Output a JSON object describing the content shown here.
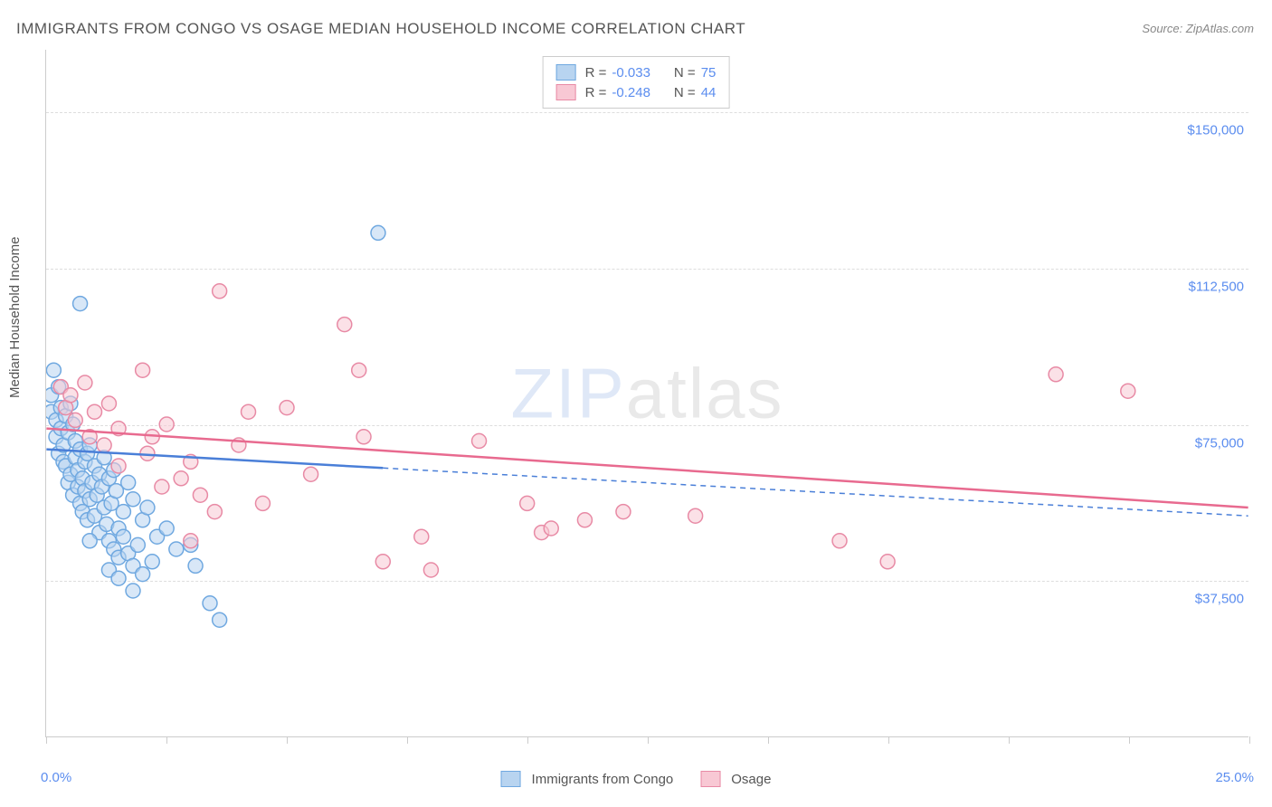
{
  "title": "IMMIGRANTS FROM CONGO VS OSAGE MEDIAN HOUSEHOLD INCOME CORRELATION CHART",
  "source_label": "Source:",
  "source_value": "ZipAtlas.com",
  "watermark_bold": "ZIP",
  "watermark_thin": "atlas",
  "y_axis_title": "Median Household Income",
  "chart": {
    "type": "scatter",
    "xlim": [
      0,
      25
    ],
    "ylim": [
      0,
      165000
    ],
    "x_tick_positions": [
      0,
      2.5,
      5,
      7.5,
      10,
      12.5,
      15,
      17.5,
      20,
      22.5,
      25
    ],
    "y_gridlines": [
      {
        "value": 37500,
        "label": "$37,500"
      },
      {
        "value": 75000,
        "label": "$75,000"
      },
      {
        "value": 112500,
        "label": "$112,500"
      },
      {
        "value": 150000,
        "label": "$150,000"
      }
    ],
    "x_label_min": "0.0%",
    "x_label_max": "25.0%",
    "background_color": "#ffffff",
    "grid_color": "#dddddd",
    "axis_color": "#cccccc",
    "marker_radius": 8,
    "marker_stroke_width": 1.5,
    "trend_line_width": 2.5,
    "series": [
      {
        "name": "Immigrants from Congo",
        "fill": "#b8d4f0",
        "stroke": "#6fa8e0",
        "line_color": "#4a7fd8",
        "r_label": "R =",
        "r_value": "-0.033",
        "n_label": "N =",
        "n_value": "75",
        "trend": {
          "x1": 0,
          "y1": 69000,
          "x2": 7.0,
          "y2": 64500,
          "dash_to_x": 25,
          "dash_to_y": 53000
        },
        "points": [
          [
            0.1,
            78000
          ],
          [
            0.1,
            82000
          ],
          [
            0.15,
            88000
          ],
          [
            0.2,
            76000
          ],
          [
            0.2,
            72000
          ],
          [
            0.25,
            84000
          ],
          [
            0.25,
            68000
          ],
          [
            0.3,
            79000
          ],
          [
            0.3,
            74000
          ],
          [
            0.35,
            70000
          ],
          [
            0.35,
            66000
          ],
          [
            0.4,
            77000
          ],
          [
            0.4,
            65000
          ],
          [
            0.45,
            73000
          ],
          [
            0.45,
            61000
          ],
          [
            0.5,
            80000
          ],
          [
            0.5,
            63000
          ],
          [
            0.55,
            58000
          ],
          [
            0.55,
            75000
          ],
          [
            0.6,
            67000
          ],
          [
            0.6,
            71000
          ],
          [
            0.65,
            60000
          ],
          [
            0.65,
            64000
          ],
          [
            0.7,
            69000
          ],
          [
            0.7,
            56000
          ],
          [
            0.75,
            62000
          ],
          [
            0.75,
            54000
          ],
          [
            0.8,
            66000
          ],
          [
            0.8,
            59000
          ],
          [
            0.85,
            68000
          ],
          [
            0.85,
            52000
          ],
          [
            0.9,
            57000
          ],
          [
            0.9,
            70000
          ],
          [
            0.95,
            61000
          ],
          [
            1.0,
            65000
          ],
          [
            1.0,
            53000
          ],
          [
            1.05,
            58000
          ],
          [
            1.1,
            63000
          ],
          [
            1.1,
            49000
          ],
          [
            1.15,
            60000
          ],
          [
            1.2,
            67000
          ],
          [
            1.2,
            55000
          ],
          [
            1.25,
            51000
          ],
          [
            1.3,
            62000
          ],
          [
            1.3,
            47000
          ],
          [
            1.35,
            56000
          ],
          [
            1.4,
            64000
          ],
          [
            1.4,
            45000
          ],
          [
            1.45,
            59000
          ],
          [
            1.5,
            50000
          ],
          [
            1.5,
            43000
          ],
          [
            1.6,
            48000
          ],
          [
            1.6,
            54000
          ],
          [
            1.7,
            61000
          ],
          [
            1.7,
            44000
          ],
          [
            1.8,
            57000
          ],
          [
            1.8,
            41000
          ],
          [
            1.9,
            46000
          ],
          [
            2.0,
            52000
          ],
          [
            2.0,
            39000
          ],
          [
            2.1,
            55000
          ],
          [
            2.2,
            42000
          ],
          [
            2.3,
            48000
          ],
          [
            0.7,
            104000
          ],
          [
            2.5,
            50000
          ],
          [
            2.7,
            45000
          ],
          [
            1.3,
            40000
          ],
          [
            1.5,
            38000
          ],
          [
            1.8,
            35000
          ],
          [
            3.0,
            46000
          ],
          [
            3.1,
            41000
          ],
          [
            3.4,
            32000
          ],
          [
            3.6,
            28000
          ],
          [
            0.9,
            47000
          ],
          [
            6.9,
            121000
          ]
        ]
      },
      {
        "name": "Osage",
        "fill": "#f8c8d4",
        "stroke": "#e88aa5",
        "line_color": "#e86a8f",
        "r_label": "R =",
        "r_value": "-0.248",
        "n_label": "N =",
        "n_value": "44",
        "trend": {
          "x1": 0,
          "y1": 74000,
          "x2": 25,
          "y2": 55000,
          "dash_to_x": null,
          "dash_to_y": null
        },
        "points": [
          [
            0.3,
            84000
          ],
          [
            0.4,
            79000
          ],
          [
            0.5,
            82000
          ],
          [
            0.6,
            76000
          ],
          [
            0.8,
            85000
          ],
          [
            0.9,
            72000
          ],
          [
            1.0,
            78000
          ],
          [
            1.2,
            70000
          ],
          [
            1.3,
            80000
          ],
          [
            1.5,
            74000
          ],
          [
            1.5,
            65000
          ],
          [
            2.0,
            88000
          ],
          [
            2.1,
            68000
          ],
          [
            2.2,
            72000
          ],
          [
            2.4,
            60000
          ],
          [
            2.5,
            75000
          ],
          [
            2.8,
            62000
          ],
          [
            3.0,
            66000
          ],
          [
            3.0,
            47000
          ],
          [
            3.2,
            58000
          ],
          [
            3.5,
            54000
          ],
          [
            3.6,
            107000
          ],
          [
            4.0,
            70000
          ],
          [
            4.2,
            78000
          ],
          [
            4.5,
            56000
          ],
          [
            5.0,
            79000
          ],
          [
            5.5,
            63000
          ],
          [
            6.2,
            99000
          ],
          [
            6.5,
            88000
          ],
          [
            6.6,
            72000
          ],
          [
            7.0,
            42000
          ],
          [
            7.8,
            48000
          ],
          [
            8.0,
            40000
          ],
          [
            9.0,
            71000
          ],
          [
            10.3,
            49000
          ],
          [
            10.5,
            50000
          ],
          [
            11.2,
            52000
          ],
          [
            12.0,
            54000
          ],
          [
            13.5,
            53000
          ],
          [
            16.5,
            47000
          ],
          [
            17.5,
            42000
          ],
          [
            21.0,
            87000
          ],
          [
            22.5,
            83000
          ],
          [
            10.0,
            56000
          ]
        ]
      }
    ]
  },
  "legend_bottom": [
    {
      "swatch_fill": "#b8d4f0",
      "swatch_stroke": "#6fa8e0",
      "label": "Immigrants from Congo"
    },
    {
      "swatch_fill": "#f8c8d4",
      "swatch_stroke": "#e88aa5",
      "label": "Osage"
    }
  ]
}
